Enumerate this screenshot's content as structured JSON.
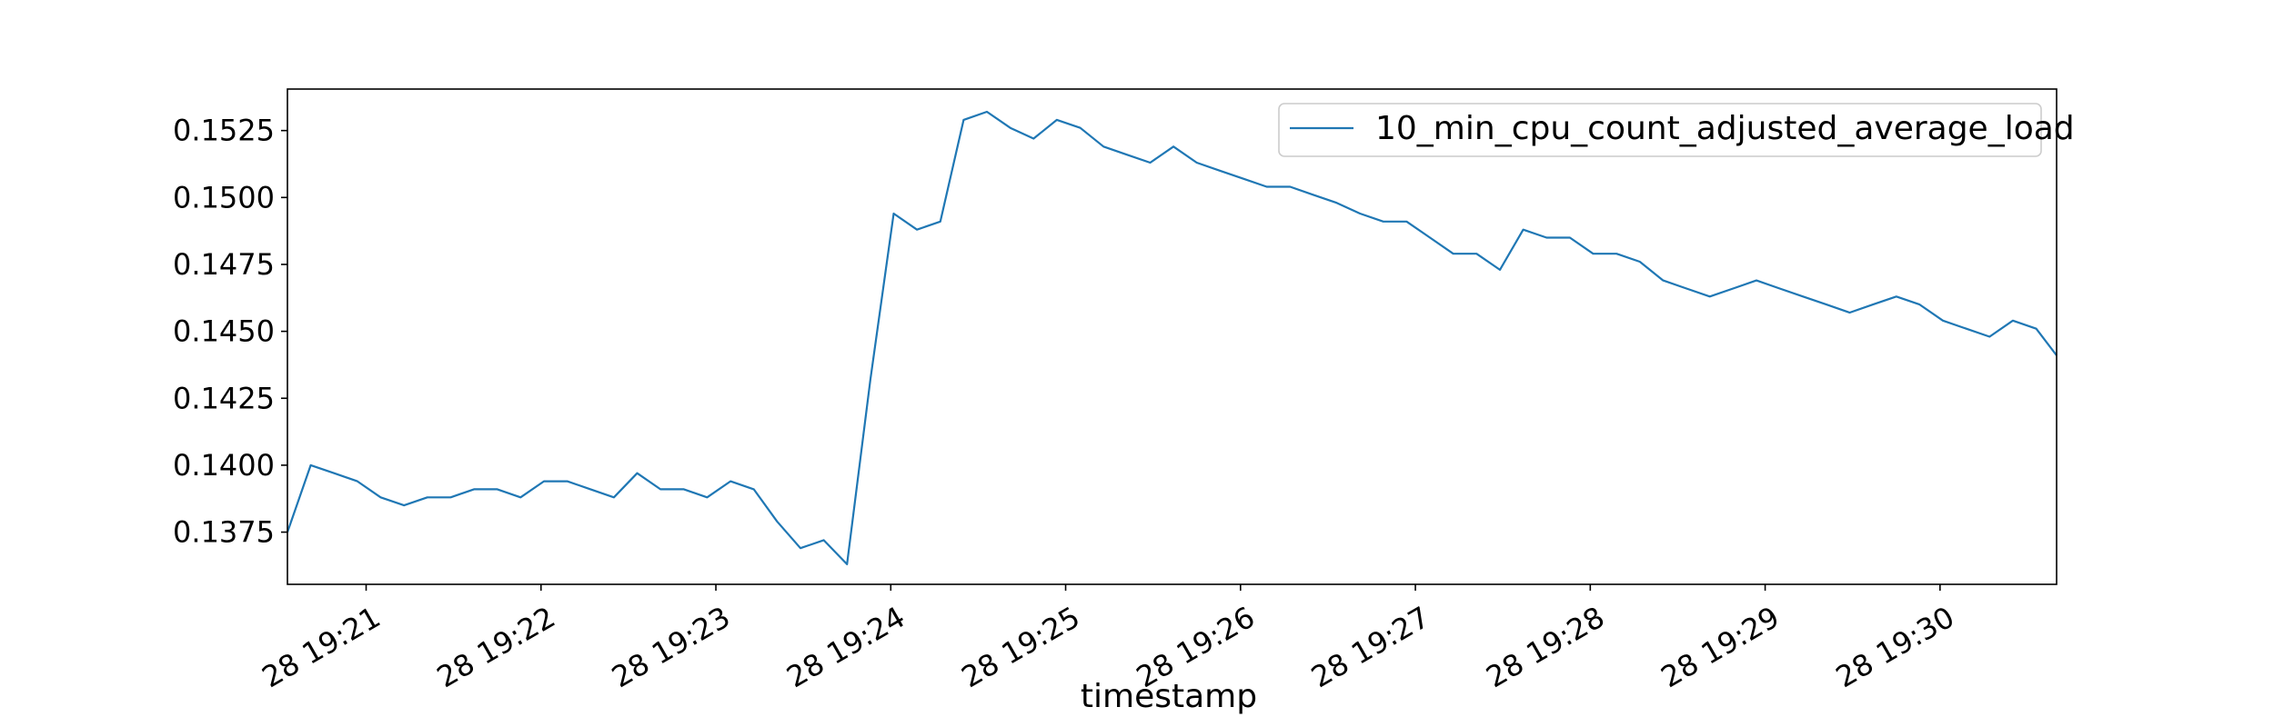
{
  "chart_data": {
    "type": "line",
    "title": "",
    "xlabel": "timestamp",
    "ylabel": "",
    "x_tick_labels": [
      "28 19:21",
      "28 19:22",
      "28 19:23",
      "28 19:24",
      "28 19:25",
      "28 19:26",
      "28 19:27",
      "28 19:28",
      "28 19:29",
      "28 19:30"
    ],
    "y_tick_labels": [
      "0.1375",
      "0.1400",
      "0.1425",
      "0.1450",
      "0.1475",
      "0.1500",
      "0.1525"
    ],
    "yticks": [
      0.1375,
      0.14,
      0.1425,
      0.145,
      0.1475,
      0.15,
      0.1525
    ],
    "xlim": [
      "19:20:33",
      "19:30:40"
    ],
    "ylim": [
      0.13555,
      0.15405
    ],
    "grid": false,
    "legend_position": "top-right",
    "series": [
      {
        "name": "10_min_cpu_count_adjusted_average_load",
        "color": "#1f77b4",
        "x": [
          "19:20:33",
          "19:20:41",
          "19:20:49",
          "19:20:57",
          "19:21:05",
          "19:21:13",
          "19:21:21",
          "19:21:29",
          "19:21:37",
          "19:21:45",
          "19:21:53",
          "19:22:01",
          "19:22:09",
          "19:22:17",
          "19:22:25",
          "19:22:33",
          "19:22:41",
          "19:22:49",
          "19:22:57",
          "19:23:05",
          "19:23:13",
          "19:23:21",
          "19:23:29",
          "19:23:37",
          "19:23:45",
          "19:23:53",
          "19:24:01",
          "19:24:09",
          "19:24:17",
          "19:24:25",
          "19:24:33",
          "19:24:41",
          "19:24:49",
          "19:24:57",
          "19:25:05",
          "19:25:13",
          "19:25:21",
          "19:25:29",
          "19:25:37",
          "19:25:45",
          "19:25:53",
          "19:26:01",
          "19:26:09",
          "19:26:17",
          "19:26:25",
          "19:26:33",
          "19:26:41",
          "19:26:49",
          "19:26:57",
          "19:27:05",
          "19:27:13",
          "19:27:21",
          "19:27:29",
          "19:27:37",
          "19:27:45",
          "19:27:53",
          "19:28:01",
          "19:28:09",
          "19:28:17",
          "19:28:25",
          "19:28:33",
          "19:28:41",
          "19:28:49",
          "19:28:57",
          "19:29:05",
          "19:29:13",
          "19:29:21",
          "19:29:29",
          "19:29:37",
          "19:29:45",
          "19:29:53",
          "19:30:01",
          "19:30:09",
          "19:30:17",
          "19:30:25",
          "19:30:33",
          "19:30:40"
        ],
        "y": [
          0.1375,
          0.14,
          0.1397,
          0.1394,
          0.1388,
          0.1385,
          0.1388,
          0.1388,
          0.1391,
          0.1391,
          0.1388,
          0.1394,
          0.1394,
          0.1391,
          0.1388,
          0.1397,
          0.1391,
          0.1391,
          0.1388,
          0.1394,
          0.1391,
          0.1379,
          0.1369,
          0.1372,
          0.1363,
          0.1432,
          0.1494,
          0.1488,
          0.1491,
          0.1529,
          0.1532,
          0.1526,
          0.1522,
          0.1529,
          0.1526,
          0.1519,
          0.1516,
          0.1513,
          0.1519,
          0.1513,
          0.151,
          0.1507,
          0.1504,
          0.1504,
          0.1501,
          0.1498,
          0.1494,
          0.1491,
          0.1491,
          0.1485,
          0.1479,
          0.1479,
          0.1473,
          0.1488,
          0.1485,
          0.1485,
          0.1479,
          0.1479,
          0.1476,
          0.1469,
          0.1466,
          0.1463,
          0.1466,
          0.1469,
          0.1466,
          0.1463,
          0.146,
          0.1457,
          0.146,
          0.1463,
          0.146,
          0.1454,
          0.1451,
          0.1448,
          0.1454,
          0.1451,
          0.1441
        ]
      }
    ]
  }
}
